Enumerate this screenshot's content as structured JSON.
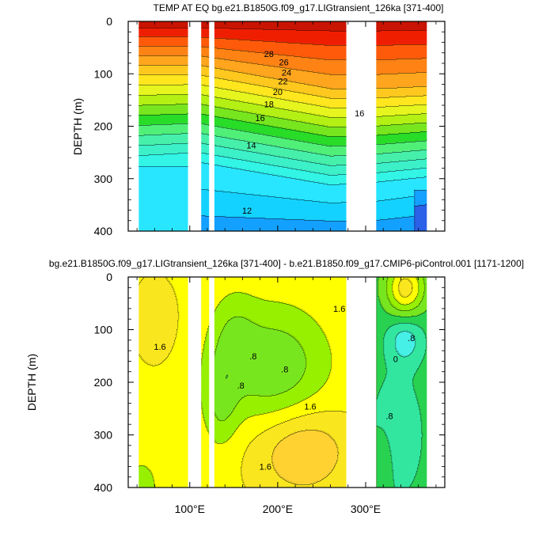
{
  "chart_data": [
    {
      "type": "heatmap",
      "title": "TEMP AT EQ bg.e21.B1850G.f09_g17.LIGtransient_126ka [371-400]",
      "ylabel": "DEPTH (m)",
      "xlim": [
        30,
        390
      ],
      "ylim": [
        400,
        0
      ],
      "yticks": [
        "0",
        "100",
        "200",
        "300",
        "400"
      ],
      "ytick_values": [
        0,
        100,
        200,
        300,
        400
      ],
      "xtick_values": [
        100,
        200,
        300
      ],
      "land_masks_lon": [
        [
          98,
          113
        ],
        [
          122,
          128
        ],
        [
          278,
          312
        ],
        [
          370,
          390
        ]
      ],
      "contour_levels": [
        12,
        14,
        16,
        18,
        20,
        22,
        24,
        26,
        28
      ],
      "contour_labels": [
        {
          "text": "28",
          "lon": 190,
          "depth": 62
        },
        {
          "text": "26",
          "lon": 207,
          "depth": 78
        },
        {
          "text": "24",
          "lon": 210,
          "depth": 97
        },
        {
          "text": "22",
          "lon": 206,
          "depth": 114
        },
        {
          "text": "20",
          "lon": 200,
          "depth": 134
        },
        {
          "text": "18",
          "lon": 190,
          "depth": 158
        },
        {
          "text": "16",
          "lon": 180,
          "depth": 184
        },
        {
          "text": "16",
          "lon": 293,
          "depth": 175
        },
        {
          "text": "14",
          "lon": 170,
          "depth": 236
        },
        {
          "text": "12",
          "lon": 165,
          "depth": 361
        }
      ]
    },
    {
      "type": "heatmap",
      "title": "bg.e21.B1850G.f09_g17.LIGtransient_126ka [371-400] - b.e21.B1850.f09_g17.CMIP6-piControl.001 [1171-1200]",
      "ylabel": "DEPTH (m)",
      "xlim": [
        30,
        390
      ],
      "ylim": [
        400,
        0
      ],
      "yticks": [
        "0",
        "100",
        "200",
        "300",
        "400"
      ],
      "ytick_values": [
        0,
        100,
        200,
        300,
        400
      ],
      "xticks": [
        "100°E",
        "200°E",
        "300°E"
      ],
      "xtick_values": [
        100,
        200,
        300
      ],
      "land_masks_lon": [
        [
          98,
          113
        ],
        [
          122,
          128
        ],
        [
          278,
          312
        ],
        [
          370,
          390
        ]
      ],
      "contour_labels": [
        {
          "text": "1.6",
          "lon": 270,
          "depth": 60
        },
        {
          "text": "1.6",
          "lon": 66,
          "depth": 132
        },
        {
          "text": ".8",
          "lon": 172,
          "depth": 150
        },
        {
          "text": ".8",
          "lon": 208,
          "depth": 175
        },
        {
          "text": ".8",
          "lon": 158,
          "depth": 206
        },
        {
          "text": "1.6",
          "lon": 237,
          "depth": 246
        },
        {
          "text": "1.6",
          "lon": 186,
          "depth": 360
        },
        {
          "text": ".8",
          "lon": 352,
          "depth": 116
        },
        {
          "text": "0",
          "lon": 334,
          "depth": 156
        },
        {
          "text": ".8",
          "lon": 327,
          "depth": 264
        }
      ]
    }
  ],
  "colors": {
    "temp_levels": [
      {
        "min": -1,
        "color": "#2b60e8"
      },
      {
        "min": 11,
        "color": "#14a0ff"
      },
      {
        "min": 12,
        "color": "#14d2ff"
      },
      {
        "min": 13,
        "color": "#28e6ff"
      },
      {
        "min": 14,
        "color": "#32f5e6"
      },
      {
        "min": 15,
        "color": "#3cf0c8"
      },
      {
        "min": 16,
        "color": "#46f0aa"
      },
      {
        "min": 17,
        "color": "#50f078"
      },
      {
        "min": 18,
        "color": "#28dc28"
      },
      {
        "min": 19,
        "color": "#78e61e"
      },
      {
        "min": 20,
        "color": "#b4f014"
      },
      {
        "min": 21,
        "color": "#e6f51e"
      },
      {
        "min": 22,
        "color": "#ffe61e"
      },
      {
        "min": 23,
        "color": "#ffc81e"
      },
      {
        "min": 24,
        "color": "#ffa51e"
      },
      {
        "min": 25,
        "color": "#ff8214"
      },
      {
        "min": 26,
        "color": "#ff5a0a"
      },
      {
        "min": 27,
        "color": "#f01e00"
      },
      {
        "min": 28,
        "color": "#c81400"
      },
      {
        "min": 29,
        "color": "#a00a00"
      }
    ],
    "diff_levels": [
      {
        "min": -9,
        "color": "#1ea0ff"
      },
      {
        "min": -0.8,
        "color": "#3cd2ff"
      },
      {
        "min": -0.4,
        "color": "#46f0e6"
      },
      {
        "min": 0,
        "color": "#32e6a0"
      },
      {
        "min": 0.4,
        "color": "#28d250"
      },
      {
        "min": 0.8,
        "color": "#78e61e"
      },
      {
        "min": 1.2,
        "color": "#96f000"
      },
      {
        "min": 1.6,
        "color": "#ffff00"
      },
      {
        "min": 2.0,
        "color": "#fae61e"
      },
      {
        "min": 2.4,
        "color": "#ffd232"
      },
      {
        "min": 2.8,
        "color": "#fab43c"
      },
      {
        "min": 3.2,
        "color": "#f59646"
      }
    ]
  }
}
